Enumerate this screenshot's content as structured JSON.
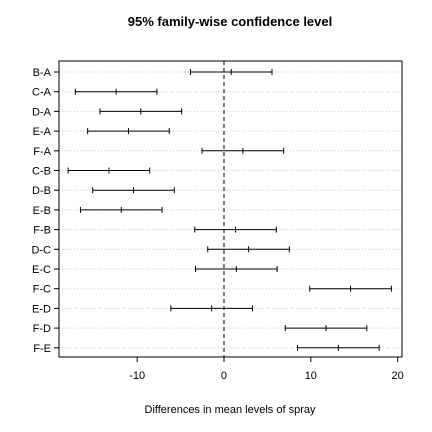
{
  "chart_data": {
    "type": "interval",
    "title": "95% family-wise confidence level",
    "xlabel": "Differences in mean levels of spray",
    "ylabel": "",
    "xlim": [
      -19,
      20.5
    ],
    "xticks": [
      -10,
      0,
      10,
      20
    ],
    "zero_line": 0,
    "grid": "horizontal dotted at each comparison",
    "comparisons": [
      {
        "label": "B-A",
        "estimate": 0.83,
        "lwr": -3.87,
        "upr": 5.53
      },
      {
        "label": "C-A",
        "estimate": -12.42,
        "lwr": -17.12,
        "upr": -7.72
      },
      {
        "label": "D-A",
        "estimate": -9.58,
        "lwr": -14.28,
        "upr": -4.88
      },
      {
        "label": "E-A",
        "estimate": -11.0,
        "lwr": -15.7,
        "upr": -6.3
      },
      {
        "label": "F-A",
        "estimate": 2.17,
        "lwr": -2.53,
        "upr": 6.87
      },
      {
        "label": "C-B",
        "estimate": -13.25,
        "lwr": -17.95,
        "upr": -8.55
      },
      {
        "label": "D-B",
        "estimate": -10.42,
        "lwr": -15.12,
        "upr": -5.72
      },
      {
        "label": "E-B",
        "estimate": -11.83,
        "lwr": -16.53,
        "upr": -7.13
      },
      {
        "label": "F-B",
        "estimate": 1.33,
        "lwr": -3.37,
        "upr": 6.03
      },
      {
        "label": "D-C",
        "estimate": 2.83,
        "lwr": -1.87,
        "upr": 7.53
      },
      {
        "label": "E-C",
        "estimate": 1.42,
        "lwr": -3.28,
        "upr": 6.12
      },
      {
        "label": "F-C",
        "estimate": 14.58,
        "lwr": 9.88,
        "upr": 19.28
      },
      {
        "label": "E-D",
        "estimate": -1.42,
        "lwr": -6.12,
        "upr": 3.28
      },
      {
        "label": "F-D",
        "estimate": 11.75,
        "lwr": 7.05,
        "upr": 16.45
      },
      {
        "label": "F-E",
        "estimate": 13.17,
        "lwr": 8.47,
        "upr": 17.87
      }
    ]
  }
}
